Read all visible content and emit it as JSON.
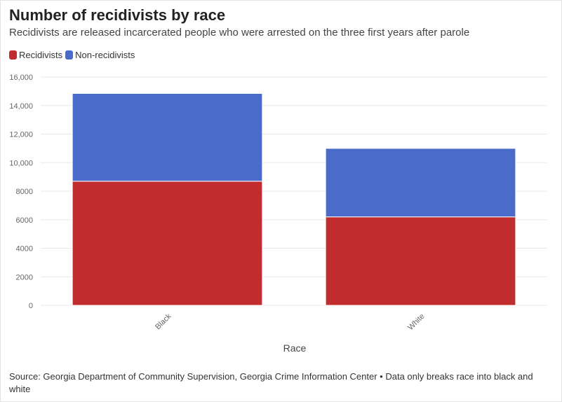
{
  "title": "Number of recidivists by race",
  "subtitle": "Recidivists are released incarcerated people who were arrested on the three first years after parole",
  "legend": [
    {
      "label": "Recidivists",
      "color": "#c12d2f"
    },
    {
      "label": "Non-recidivists",
      "color": "#4a6bc9"
    }
  ],
  "footer": "Source: Georgia Department of Community Supervision, Georgia Crime Information Center • Data only breaks race into black and white",
  "chart_data": {
    "type": "bar",
    "stacked": true,
    "title": "Number of recidivists by race",
    "xlabel": "Race",
    "ylabel": "",
    "categories": [
      "Black",
      "White"
    ],
    "series": [
      {
        "name": "Recidivists",
        "color": "#c12d2f",
        "values": [
          8700,
          6200
        ]
      },
      {
        "name": "Non-recidivists",
        "color": "#4a6bc9",
        "values": [
          6150,
          4800
        ]
      }
    ],
    "ylim": [
      0,
      16000
    ],
    "yticks": [
      0,
      2000,
      4000,
      6000,
      8000,
      10000,
      12000,
      14000,
      16000
    ],
    "ytick_labels": [
      "0",
      "2000",
      "4000",
      "6000",
      "8000",
      "10,000",
      "12,000",
      "14,000",
      "16,000"
    ],
    "grid": true,
    "legend_position": "top-left"
  }
}
